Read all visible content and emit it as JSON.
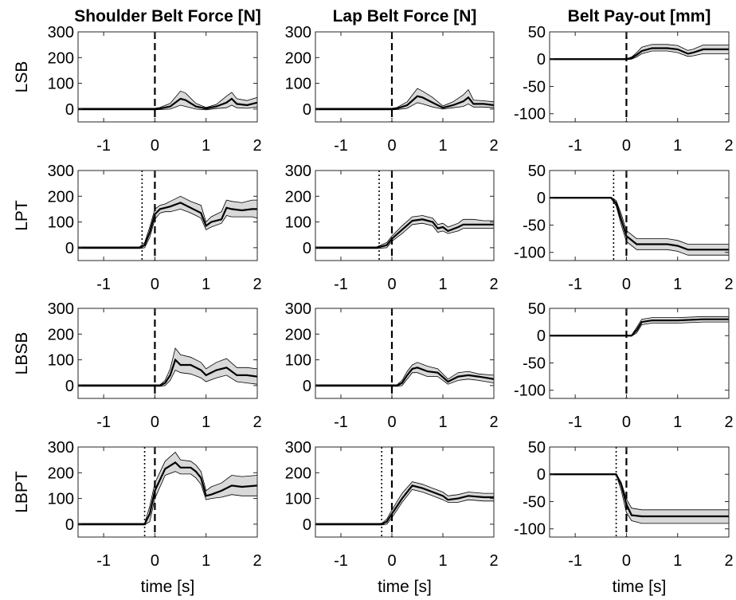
{
  "chart_data": {
    "type": "line",
    "layout": "4x3 small multiples",
    "columns": [
      {
        "title": "Shoulder Belt Force [N]",
        "ylim": [
          -50,
          300
        ],
        "yticks": [
          0,
          100,
          200,
          300
        ]
      },
      {
        "title": "Lap Belt Force [N]",
        "ylim": [
          -50,
          300
        ],
        "yticks": [
          0,
          100,
          200,
          300
        ]
      },
      {
        "title": "Belt Pay-out [mm]",
        "ylim": [
          -115,
          50
        ],
        "yticks": [
          50,
          0,
          -50,
          -100
        ]
      }
    ],
    "rows": [
      "LSB",
      "LPT",
      "LBSB",
      "LBPT"
    ],
    "xlabel": "time [s]",
    "xlim": [
      -1.5,
      2
    ],
    "xticks": [
      -1,
      0,
      1,
      2
    ],
    "grid": false,
    "series_styles": {
      "mean": "solid black line",
      "band": "grey shaded range",
      "event_marker": "dashed vertical line at t = 0",
      "onset_marker": "dotted vertical line"
    },
    "panels": [
      {
        "row": "LSB",
        "column": "Shoulder Belt Force [N]",
        "onset": null,
        "x": [
          -1.5,
          0,
          0.1,
          0.3,
          0.5,
          0.6,
          0.8,
          1.0,
          1.2,
          1.4,
          1.5,
          1.6,
          1.8,
          2.0
        ],
        "mean": [
          0,
          0,
          2,
          10,
          40,
          35,
          10,
          2,
          10,
          25,
          40,
          20,
          15,
          25
        ],
        "upper": [
          3,
          3,
          6,
          22,
          70,
          62,
          22,
          6,
          18,
          50,
          65,
          40,
          33,
          45
        ],
        "lower": [
          -3,
          -3,
          -2,
          0,
          15,
          10,
          0,
          -3,
          2,
          5,
          15,
          5,
          3,
          8
        ]
      },
      {
        "row": "LSB",
        "column": "Lap Belt Force [N]",
        "onset": null,
        "x": [
          -1.5,
          0,
          0.1,
          0.3,
          0.5,
          0.6,
          0.8,
          1.0,
          1.2,
          1.4,
          1.5,
          1.6,
          1.8,
          2.0
        ],
        "mean": [
          0,
          0,
          2,
          15,
          50,
          45,
          25,
          5,
          15,
          30,
          45,
          20,
          20,
          15
        ],
        "upper": [
          3,
          3,
          6,
          28,
          80,
          70,
          45,
          12,
          28,
          55,
          75,
          35,
          32,
          28
        ],
        "lower": [
          -3,
          -3,
          -2,
          3,
          25,
          20,
          8,
          0,
          5,
          10,
          20,
          8,
          8,
          5
        ]
      },
      {
        "row": "LSB",
        "column": "Belt Pay-out [mm]",
        "onset": null,
        "x": [
          -1.5,
          0,
          0.1,
          0.2,
          0.3,
          0.5,
          0.8,
          1.0,
          1.2,
          1.3,
          1.5,
          1.7,
          2.0
        ],
        "mean": [
          0,
          0,
          2,
          8,
          15,
          20,
          20,
          18,
          10,
          12,
          18,
          18,
          18
        ],
        "upper": [
          1,
          1,
          4,
          12,
          22,
          27,
          27,
          25,
          16,
          18,
          26,
          26,
          26
        ],
        "lower": [
          -1,
          -1,
          0,
          4,
          10,
          15,
          15,
          12,
          5,
          6,
          10,
          10,
          10
        ]
      },
      {
        "row": "LPT",
        "column": "Shoulder Belt Force [N]",
        "onset": -0.25,
        "x": [
          -1.5,
          -0.3,
          -0.2,
          -0.1,
          0,
          0.1,
          0.2,
          0.3,
          0.5,
          0.7,
          0.9,
          1.0,
          1.1,
          1.3,
          1.4,
          1.5,
          1.7,
          1.9,
          2.0
        ],
        "mean": [
          0,
          0,
          10,
          60,
          130,
          150,
          155,
          160,
          175,
          155,
          135,
          85,
          100,
          110,
          155,
          150,
          145,
          150,
          150
        ],
        "upper": [
          3,
          3,
          20,
          80,
          150,
          165,
          170,
          180,
          200,
          180,
          165,
          100,
          120,
          140,
          185,
          180,
          175,
          185,
          185
        ],
        "lower": [
          -3,
          -3,
          0,
          40,
          110,
          135,
          140,
          140,
          150,
          135,
          115,
          70,
          80,
          95,
          125,
          120,
          120,
          120,
          115
        ]
      },
      {
        "row": "LPT",
        "column": "Lap Belt Force [N]",
        "onset": -0.25,
        "x": [
          -1.5,
          -0.3,
          -0.1,
          0,
          0.2,
          0.4,
          0.6,
          0.8,
          0.9,
          1.0,
          1.1,
          1.3,
          1.4,
          1.6,
          1.8,
          2.0
        ],
        "mean": [
          0,
          0,
          10,
          35,
          70,
          105,
          110,
          100,
          75,
          80,
          65,
          80,
          90,
          90,
          90,
          90
        ],
        "upper": [
          3,
          3,
          20,
          45,
          85,
          120,
          125,
          115,
          90,
          95,
          80,
          95,
          110,
          110,
          105,
          105
        ],
        "lower": [
          -3,
          -3,
          0,
          25,
          55,
          90,
          95,
          85,
          60,
          65,
          55,
          65,
          75,
          75,
          75,
          75
        ]
      },
      {
        "row": "LPT",
        "column": "Belt Pay-out [mm]",
        "onset": -0.25,
        "x": [
          -1.5,
          -0.3,
          -0.2,
          -0.1,
          0,
          0.2,
          0.5,
          0.8,
          1.0,
          1.2,
          1.5,
          2.0
        ],
        "mean": [
          0,
          0,
          -10,
          -40,
          -70,
          -85,
          -85,
          -85,
          -88,
          -95,
          -95,
          -95
        ],
        "upper": [
          1,
          1,
          -5,
          -30,
          -60,
          -75,
          -75,
          -75,
          -78,
          -85,
          -85,
          -85
        ],
        "lower": [
          -1,
          -1,
          -15,
          -50,
          -80,
          -95,
          -95,
          -95,
          -98,
          -105,
          -105,
          -105
        ]
      },
      {
        "row": "LBSB",
        "column": "Shoulder Belt Force [N]",
        "onset": null,
        "x": [
          -1.5,
          0.1,
          0.2,
          0.3,
          0.4,
          0.5,
          0.7,
          0.9,
          1.0,
          1.2,
          1.4,
          1.6,
          1.8,
          2.0
        ],
        "mean": [
          0,
          0,
          10,
          40,
          100,
          80,
          80,
          60,
          40,
          60,
          70,
          40,
          40,
          35
        ],
        "upper": [
          3,
          3,
          20,
          65,
          145,
          120,
          110,
          90,
          65,
          90,
          105,
          70,
          70,
          65
        ],
        "lower": [
          -3,
          -3,
          0,
          20,
          60,
          50,
          45,
          30,
          15,
          30,
          40,
          15,
          10,
          5
        ]
      },
      {
        "row": "LBSB",
        "column": "Lap Belt Force [N]",
        "onset": null,
        "x": [
          -1.5,
          0.1,
          0.2,
          0.3,
          0.4,
          0.5,
          0.7,
          0.9,
          1.1,
          1.3,
          1.5,
          1.7,
          2.0
        ],
        "mean": [
          0,
          0,
          10,
          40,
          65,
          70,
          55,
          50,
          15,
          35,
          40,
          35,
          25
        ],
        "upper": [
          3,
          3,
          20,
          55,
          80,
          90,
          75,
          65,
          25,
          50,
          55,
          45,
          40
        ],
        "lower": [
          -3,
          -3,
          0,
          25,
          50,
          50,
          35,
          35,
          5,
          20,
          25,
          20,
          10
        ]
      },
      {
        "row": "LBSB",
        "column": "Belt Pay-out [mm]",
        "onset": null,
        "x": [
          -1.5,
          0.1,
          0.2,
          0.3,
          0.5,
          1.0,
          1.5,
          2.0
        ],
        "mean": [
          0,
          0,
          10,
          25,
          28,
          28,
          30,
          30
        ],
        "upper": [
          1,
          1,
          15,
          30,
          33,
          33,
          35,
          35
        ],
        "lower": [
          -1,
          -1,
          5,
          20,
          23,
          23,
          25,
          25
        ]
      },
      {
        "row": "LBPT",
        "column": "Shoulder Belt Force [N]",
        "onset": -0.2,
        "x": [
          -1.5,
          -0.2,
          -0.1,
          0,
          0.2,
          0.4,
          0.5,
          0.7,
          0.8,
          0.9,
          1.0,
          1.1,
          1.3,
          1.5,
          1.7,
          2.0
        ],
        "mean": [
          0,
          0,
          40,
          130,
          215,
          240,
          220,
          220,
          205,
          180,
          110,
          115,
          130,
          150,
          145,
          150
        ],
        "upper": [
          3,
          3,
          70,
          160,
          245,
          280,
          250,
          245,
          230,
          205,
          130,
          145,
          160,
          190,
          185,
          190
        ],
        "lower": [
          -3,
          -3,
          10,
          100,
          190,
          205,
          195,
          195,
          180,
          155,
          95,
          100,
          105,
          115,
          110,
          110
        ]
      },
      {
        "row": "LBPT",
        "column": "Lap Belt Force [N]",
        "onset": -0.2,
        "x": [
          -1.5,
          -0.2,
          -0.1,
          0,
          0.2,
          0.4,
          0.6,
          0.8,
          1.0,
          1.1,
          1.3,
          1.5,
          1.8,
          2.0
        ],
        "mean": [
          0,
          0,
          10,
          40,
          100,
          150,
          140,
          125,
          110,
          95,
          100,
          110,
          105,
          105
        ],
        "upper": [
          3,
          3,
          20,
          55,
          120,
          165,
          155,
          140,
          125,
          110,
          115,
          125,
          120,
          120
        ],
        "lower": [
          -3,
          -3,
          0,
          25,
          85,
          135,
          125,
          110,
          95,
          85,
          85,
          95,
          90,
          90
        ]
      },
      {
        "row": "LBPT",
        "column": "Belt Pay-out [mm]",
        "onset": -0.2,
        "x": [
          -1.5,
          -0.2,
          -0.1,
          0,
          0.1,
          0.3,
          1.0,
          1.5,
          2.0
        ],
        "mean": [
          0,
          0,
          -20,
          -55,
          -75,
          -77,
          -77,
          -77,
          -77
        ],
        "upper": [
          1,
          1,
          -15,
          -45,
          -62,
          -65,
          -65,
          -65,
          -65
        ],
        "lower": [
          -1,
          -1,
          -30,
          -70,
          -85,
          -90,
          -90,
          -90,
          -90
        ]
      }
    ]
  }
}
